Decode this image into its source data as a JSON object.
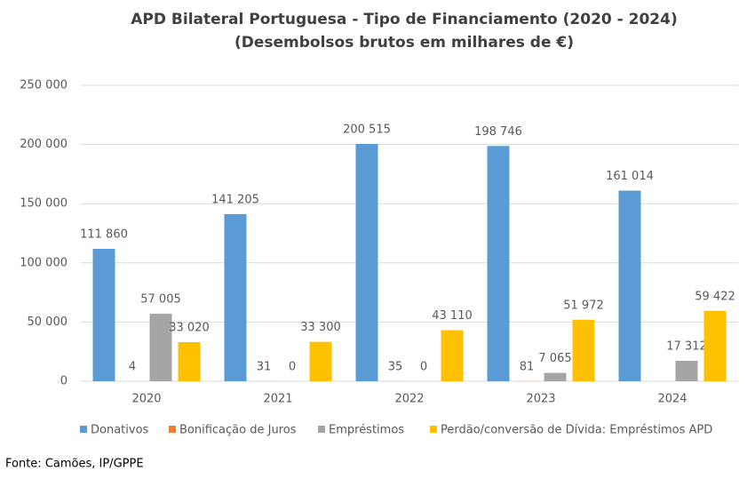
{
  "chart_data": {
    "type": "bar",
    "title": "APD Bilateral Portuguesa - Tipo de Financiamento (2020 - 2024)",
    "subtitle": "(Desembolsos brutos em milhares de €)",
    "categories": [
      "2020",
      "2021",
      "2022",
      "2023",
      "2024"
    ],
    "series": [
      {
        "name": "Donativos",
        "color": "#5b9bd5",
        "values": [
          111860,
          141205,
          200515,
          198746,
          161014
        ],
        "value_labels": [
          "111 860",
          "141 205",
          "200 515",
          "198 746",
          "161 014"
        ]
      },
      {
        "name": "Bonificação de Juros",
        "color": "#ed7d31",
        "values": [
          4,
          31,
          35,
          81,
          0
        ],
        "value_labels": [
          "4",
          "31",
          "35",
          "81",
          ""
        ]
      },
      {
        "name": "Empréstimos",
        "color": "#a5a5a5",
        "values": [
          57005,
          0,
          0,
          7065,
          17312
        ],
        "value_labels": [
          "57 005",
          "0",
          "0",
          "7 065",
          "17 312"
        ]
      },
      {
        "name": "Perdão/conversão de Dívida: Empréstimos APD",
        "color": "#ffc000",
        "values": [
          33020,
          33300,
          43110,
          51972,
          59422
        ],
        "value_labels": [
          "33 020",
          "33 300",
          "43 110",
          "51 972",
          "59 422"
        ]
      }
    ],
    "ylim": [
      0,
      250000
    ],
    "yticks": [
      0,
      {
        "value": 50000,
        "label": "50 000"
      },
      {
        "value": 100000,
        "label": "100 000"
      },
      {
        "value": 150000,
        "label": "150 000"
      },
      {
        "value": 200000,
        "label": "200 000"
      },
      {
        "value": 250000,
        "label": "250 000"
      }
    ],
    "grid": true,
    "legend": "bottom",
    "source": "Fonte: Camões, IP/GPPE"
  }
}
